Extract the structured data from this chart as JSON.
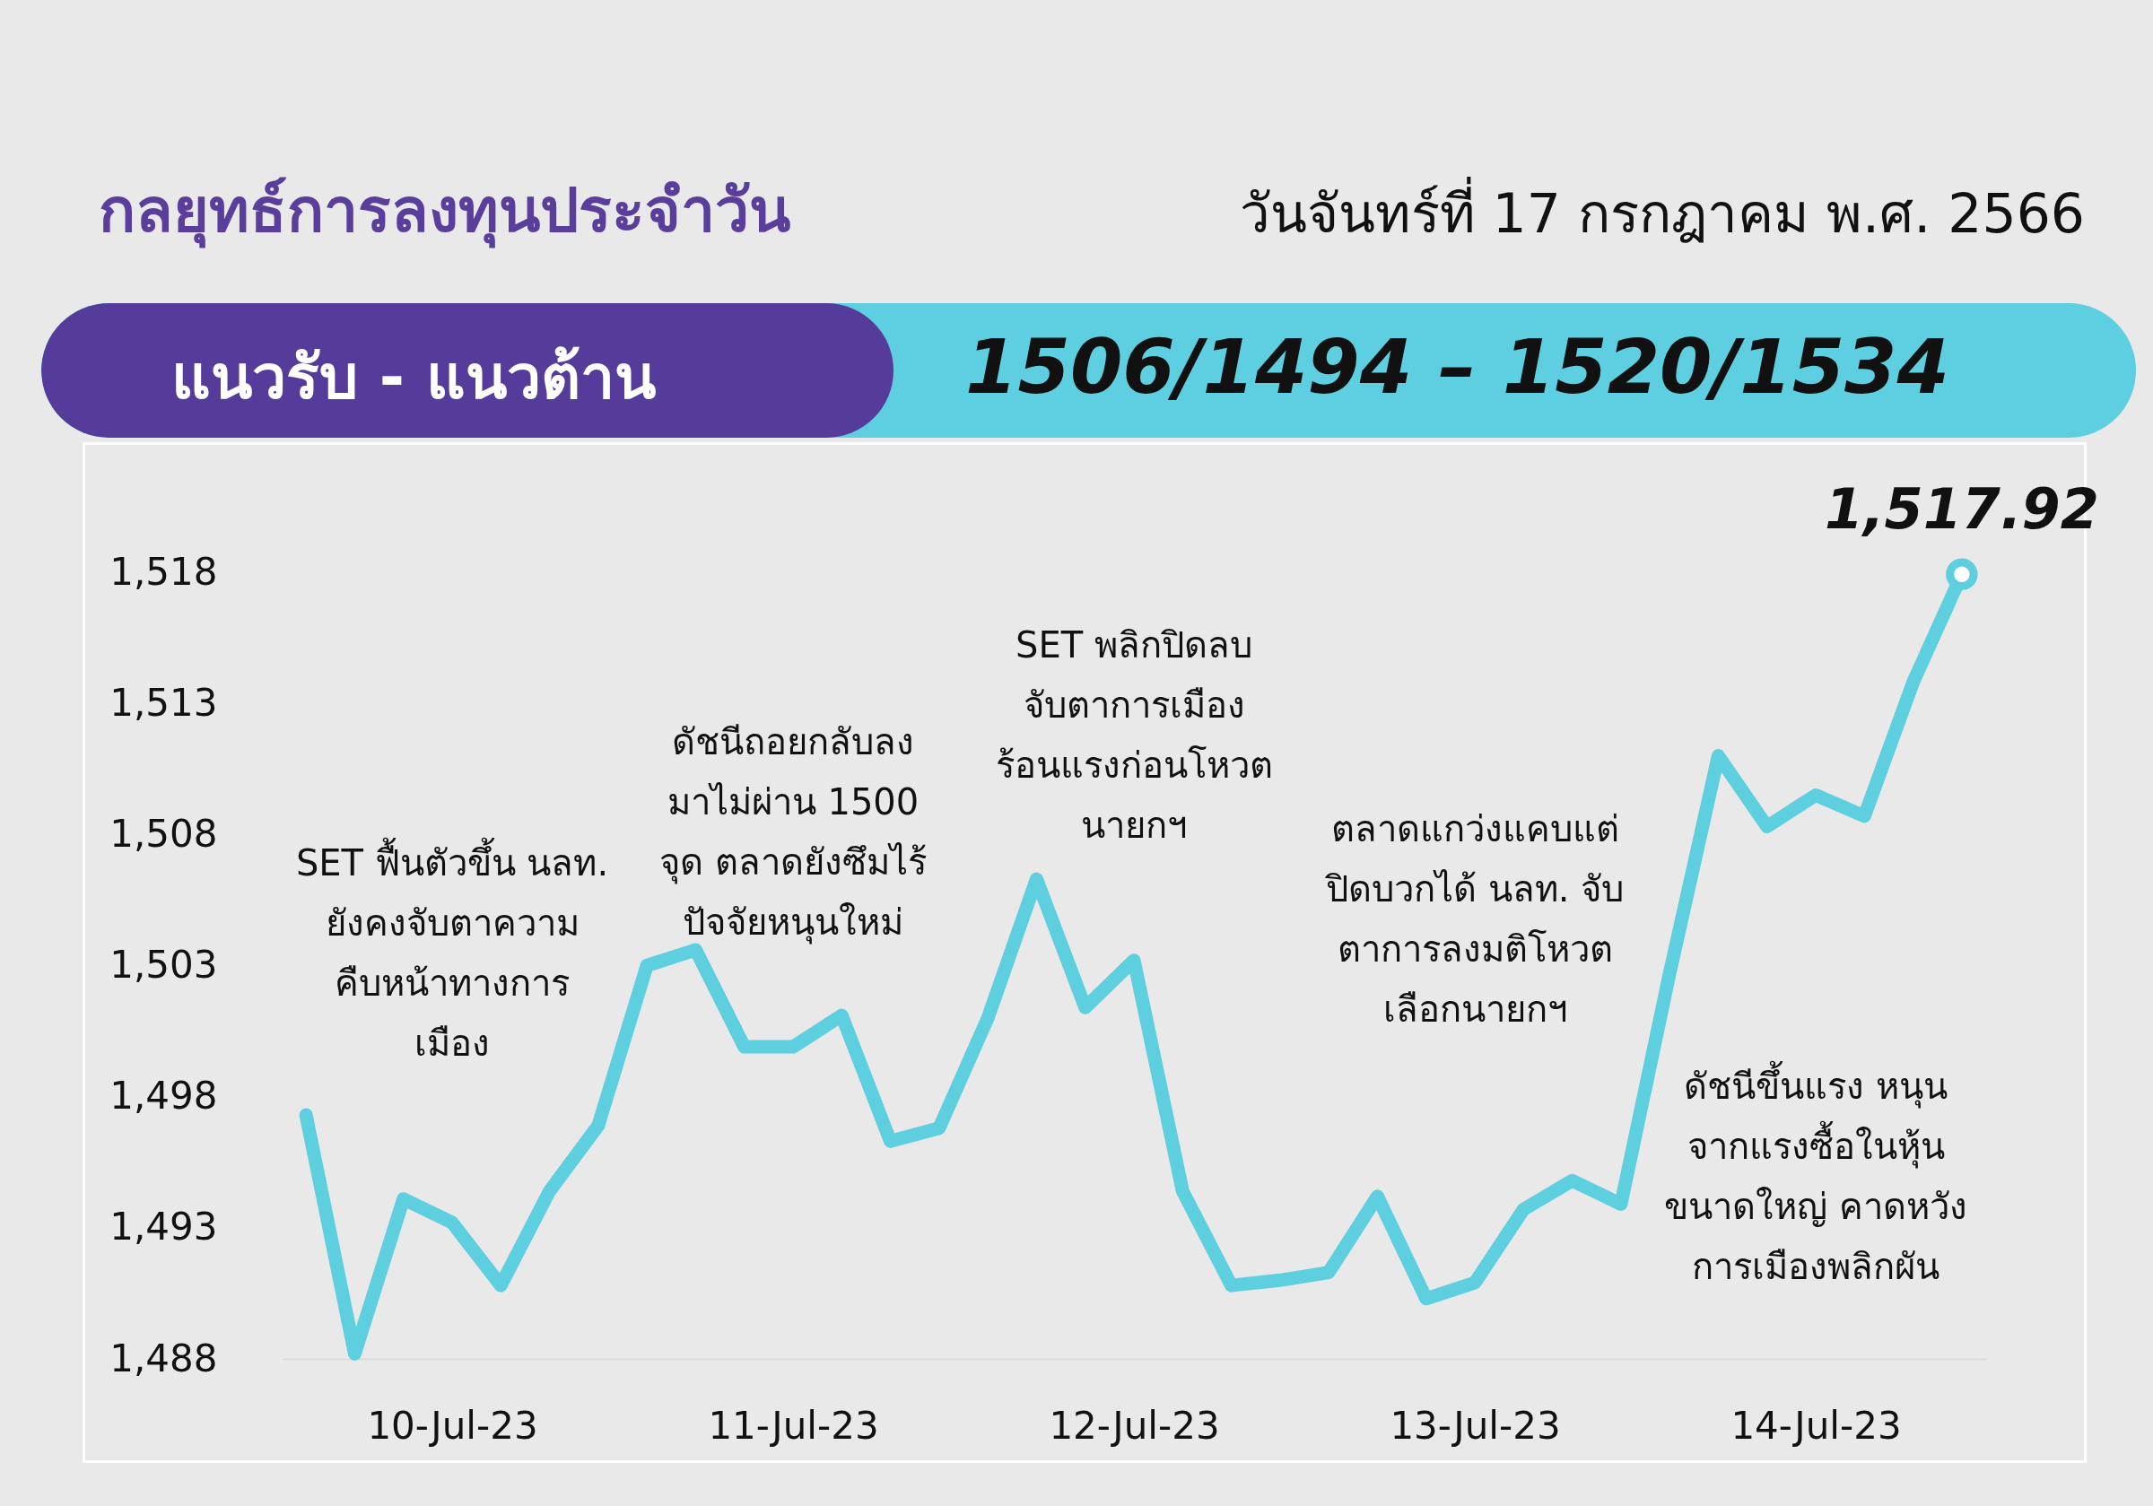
{
  "chart_data": {
    "type": "line",
    "title": "กลยุทธ์การลงทุนประจำวัน",
    "subtitle": "วันจันทร์ที่ 17 กรกฎาคม พ.ศ. 2566",
    "annotations": [
      "แนวรับ - แนวต้าน",
      "1506/1494 – 1520/1534",
      "SET ฟื้นตัวขึ้น นลท.\nยังคงจับตาความ\nคืบหน้าทางการ\nเมือง",
      "ดัชนีถอยกลับลง\nมาไม่ผ่าน 1500\nจุด ตลาดยังซึมไร้\nปัจจัยหนุนใหม่",
      "SET พลิกปิดลบ\nจับตาการเมือง\nร้อนแรงก่อนโหวต\nนายกฯ",
      "ตลาดแกว่งแคบแต่\nปิดบวกได้ นลท. จับ\nตาการลงมติโหวต\nเลือกนายกฯ",
      "ดัชนีขึ้นแรง หนุน\nจากแรงซื้อในหุ้น\nขนาดใหญ่ คาดหวัง\nการเมืองพลิกผัน"
    ],
    "categories": [
      null,
      null,
      null,
      "10-Jul-23",
      null,
      null,
      null,
      null,
      null,
      null,
      "11-Jul-23",
      null,
      null,
      null,
      null,
      null,
      null,
      "12-Jul-23",
      null,
      null,
      null,
      null,
      null,
      null,
      "13-Jul-23",
      null,
      null,
      null,
      null,
      null,
      null,
      "14-Jul-23",
      null,
      null,
      null
    ],
    "series": [
      {
        "color": "#5ecfdf",
        "values": [
          1497.3,
          1488.2,
          1494.1,
          1493.2,
          1490.8,
          1494.4,
          1496.9,
          1503.0,
          1503.6,
          1499.9,
          1499.9,
          1501.1,
          1496.3,
          1496.8,
          1501.0,
          1506.3,
          1501.4,
          1503.2,
          1494.4,
          1490.8,
          1491.0,
          1491.3,
          1494.2,
          1490.3,
          1490.9,
          1493.7,
          1494.8,
          1493.9,
          1502.7,
          1511.0,
          1508.3,
          1509.5,
          1508.7,
          1513.8,
          1517.92
        ],
        "value_labels": [
          null,
          null,
          null,
          null,
          null,
          null,
          null,
          null,
          null,
          null,
          null,
          null,
          null,
          null,
          null,
          null,
          null,
          null,
          null,
          null,
          null,
          null,
          null,
          null,
          null,
          null,
          null,
          null,
          null,
          null,
          null,
          null,
          null,
          null,
          "1,517.92"
        ]
      }
    ],
    "ylim": [
      1488,
      1518
    ],
    "yticks": [
      {
        "value": 1488,
        "label": "1,488"
      },
      {
        "value": 1493,
        "label": "1,493"
      },
      {
        "value": 1498,
        "label": "1,498"
      },
      {
        "value": 1503,
        "label": "1,503"
      },
      {
        "value": 1508,
        "label": "1,508"
      },
      {
        "value": 1513,
        "label": "1,513"
      },
      {
        "value": 1518,
        "label": "1,518"
      }
    ],
    "grid": false,
    "marker": "none",
    "line_style": "solid"
  }
}
